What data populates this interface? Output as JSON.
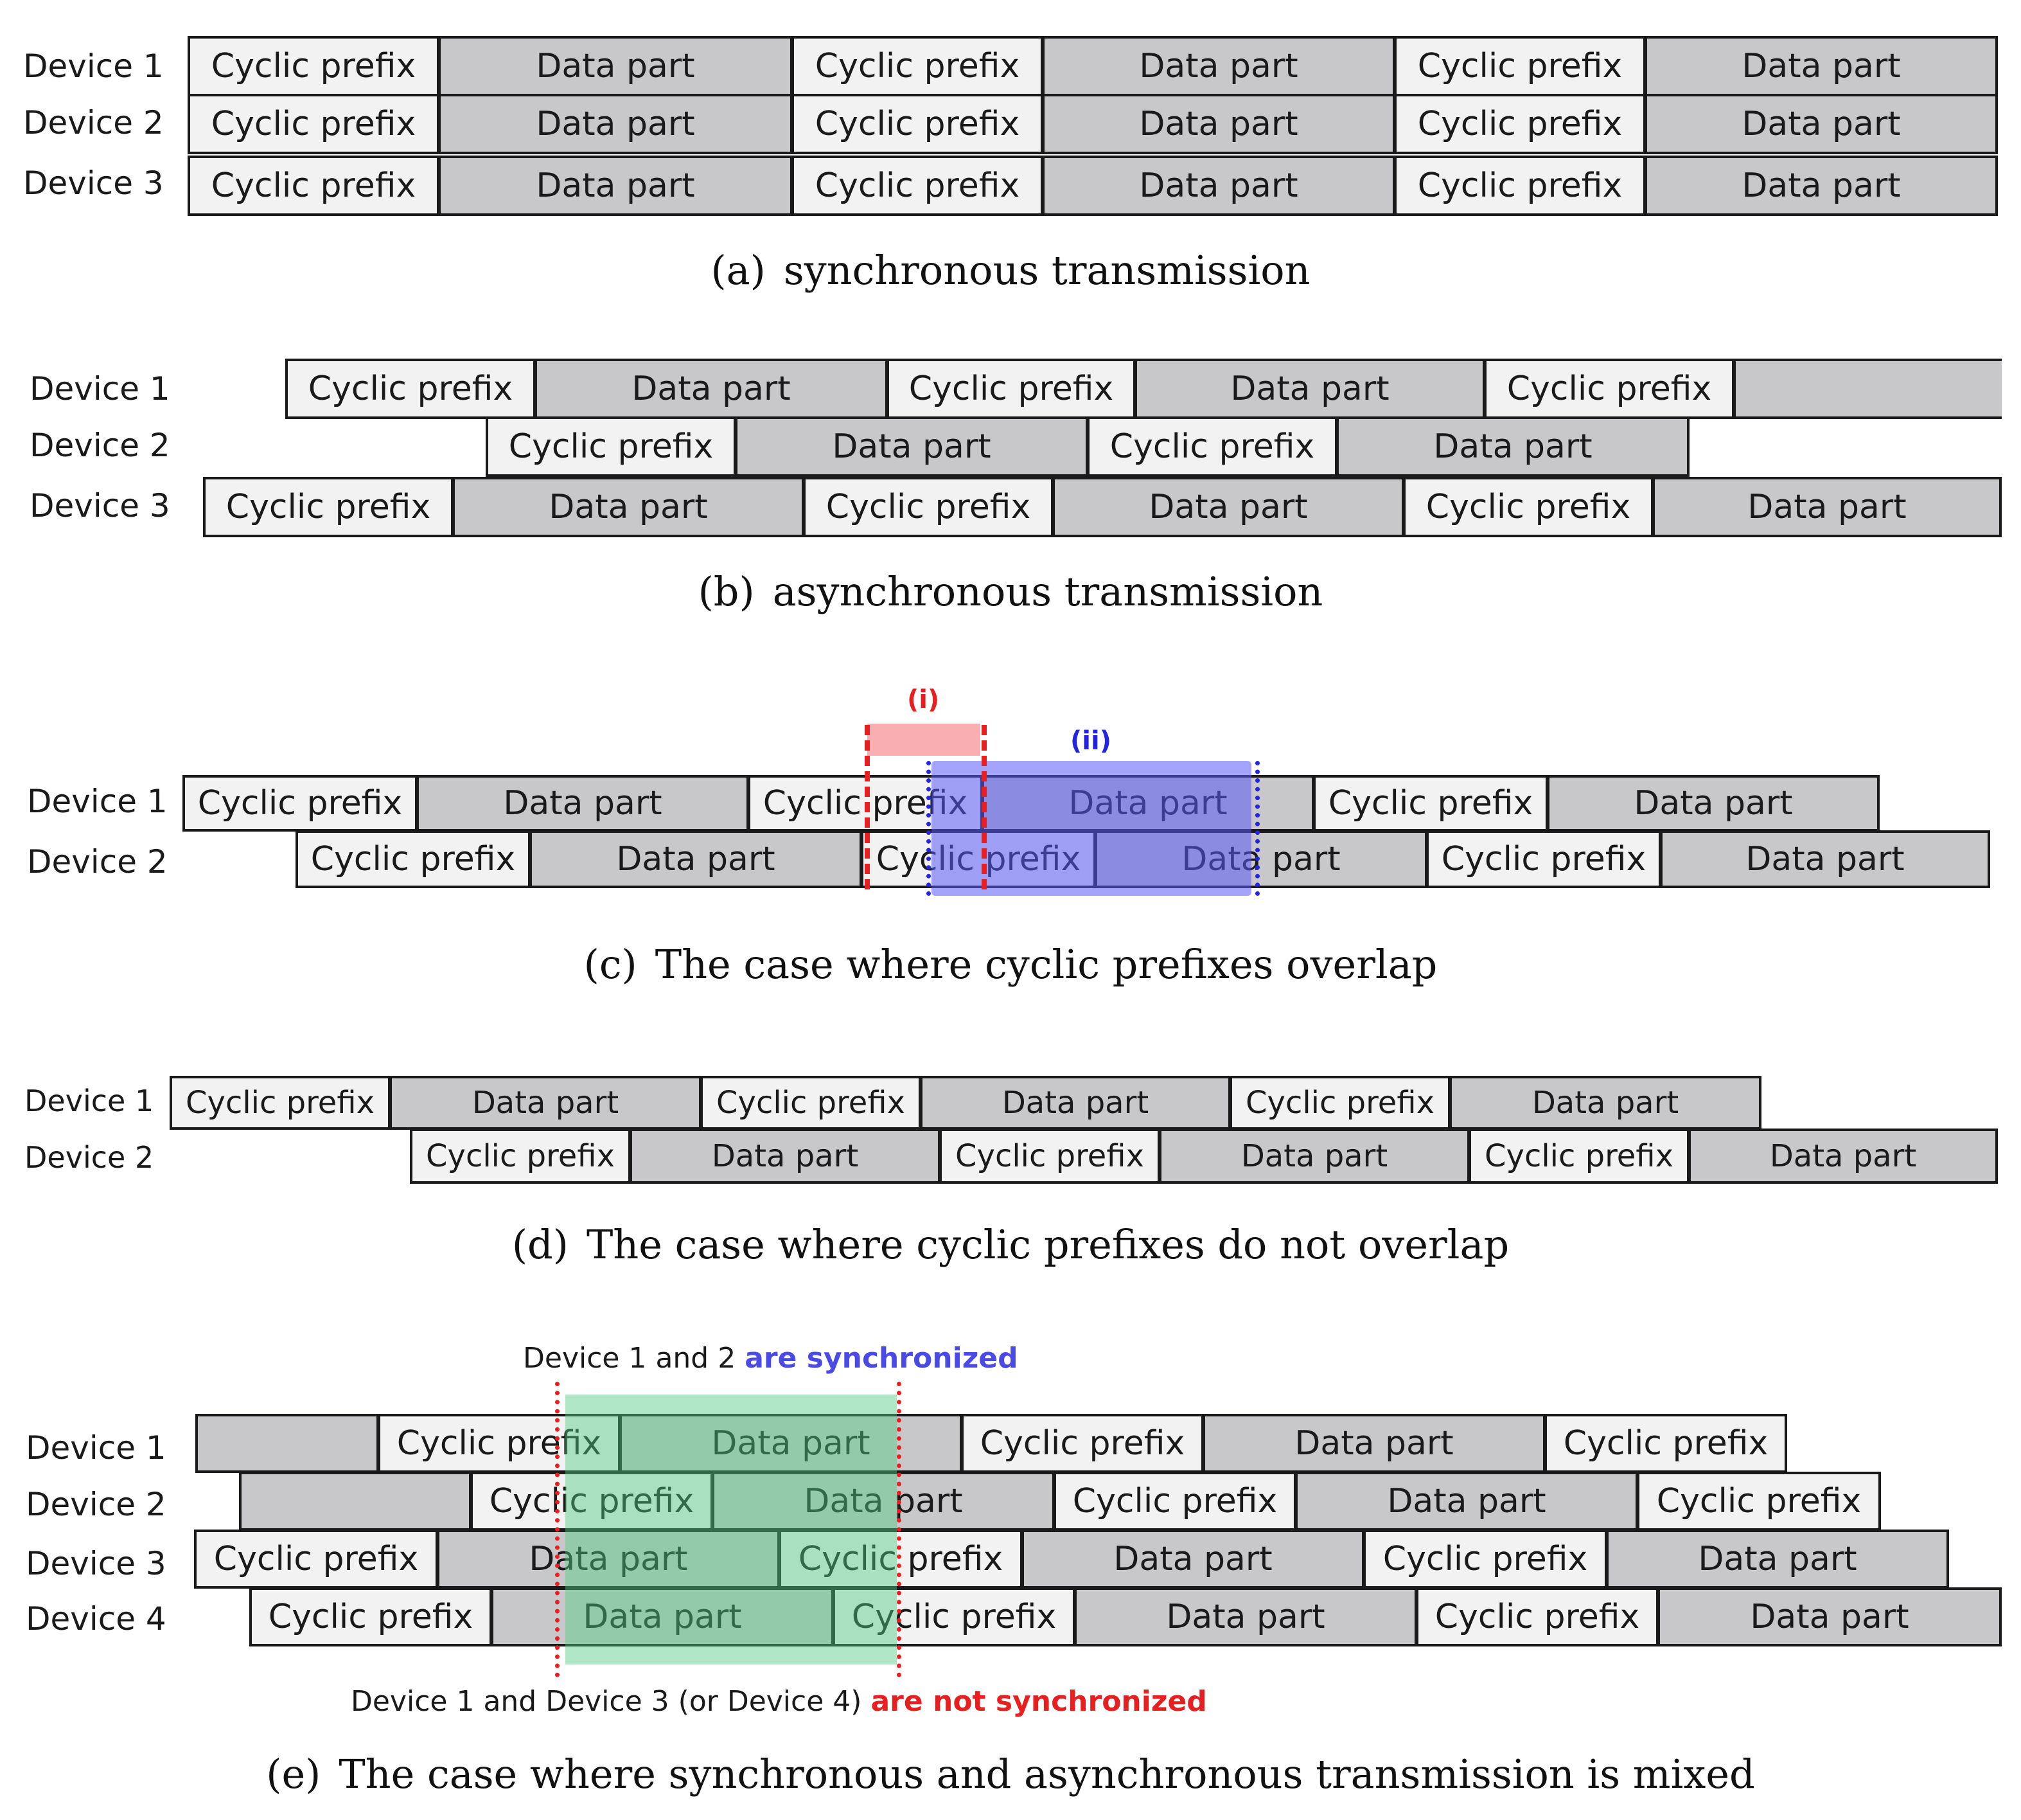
{
  "labels": {
    "cp": "Cyclic prefix",
    "dp": "Data part"
  },
  "panel_a": {
    "devices": [
      "Device 1",
      "Device 2",
      "Device 3"
    ],
    "caption_label": "(a)",
    "caption_text": "synchronous transmission"
  },
  "panel_b": {
    "devices": [
      "Device 1",
      "Device 2",
      "Device 3"
    ],
    "caption_label": "(b)",
    "caption_text": "asynchronous transmission"
  },
  "panel_c": {
    "devices": [
      "Device 1",
      "Device 2"
    ],
    "marker_i": "(i)",
    "marker_ii": "(ii)",
    "caption_label": "(c)",
    "caption_text": "The case where cyclic prefixes overlap"
  },
  "panel_d": {
    "devices": [
      "Device 1",
      "Device 2"
    ],
    "caption_label": "(d)",
    "caption_text": "The case where cyclic prefixes do not overlap"
  },
  "panel_e": {
    "devices": [
      "Device 1",
      "Device 2",
      "Device 3",
      "Device 4"
    ],
    "top_note_prefix": "Device 1 and 2",
    "top_note_highlight": "are synchronized",
    "bottom_note_prefix": "Device 1 and Device 3 (or Device 4)",
    "bottom_note_highlight": "are not synchronized",
    "caption_label": "(e)",
    "caption_text": "The case where synchronous and asynchronous transmission is mixed"
  },
  "colors": {
    "cyclic_prefix_fill": "#f2f2f2",
    "data_part_fill": "#c8c8ca",
    "overlap_red": "#e62020",
    "overlap_blue": "#2424e0",
    "sync_green": "#5fd08a",
    "sync_text_blue": "#4a4ae6",
    "not_sync_text_red": "#e62020"
  }
}
